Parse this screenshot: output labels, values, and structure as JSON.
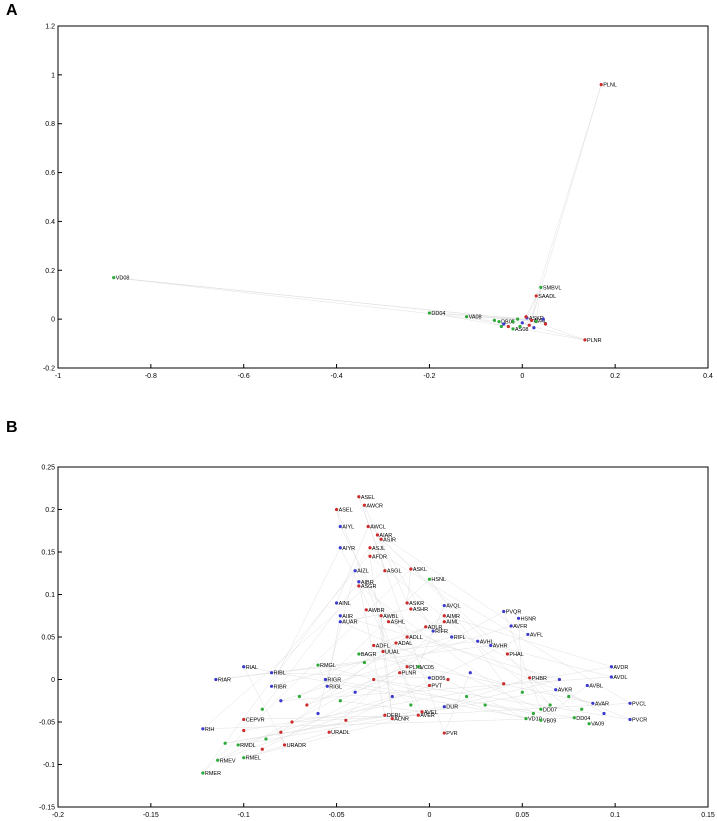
{
  "chart_data": [
    {
      "panel": "A",
      "type": "scatter",
      "title": "",
      "xlabel": "",
      "ylabel": "",
      "xlim": [
        -1,
        0.4
      ],
      "ylim": [
        -0.2,
        1.2
      ],
      "xticks": [
        -1,
        -0.8,
        -0.6,
        -0.4,
        -0.2,
        0,
        0.2,
        0.4
      ],
      "yticks": [
        -0.2,
        0,
        0.2,
        0.4,
        0.6,
        0.8,
        1,
        1.2
      ],
      "colors": {
        "sensory": "#3a3acc",
        "inter": "#cc2b2b",
        "motor": "#2eaa3a"
      },
      "points": [
        {
          "label": "PLNL",
          "x": 0.17,
          "y": 0.96,
          "class": "inter"
        },
        {
          "label": "VD08",
          "x": -0.88,
          "y": 0.17,
          "class": "motor"
        },
        {
          "label": "SMBVL",
          "x": 0.04,
          "y": 0.13,
          "class": "motor"
        },
        {
          "label": "SAADL",
          "x": 0.03,
          "y": 0.095,
          "class": "inter"
        },
        {
          "label": "DD04",
          "x": -0.2,
          "y": 0.025,
          "class": "motor"
        },
        {
          "label": "VA08",
          "x": -0.12,
          "y": 0.01,
          "class": "motor"
        },
        {
          "label": "PLNR",
          "x": 0.135,
          "y": -0.085,
          "class": "inter"
        },
        {
          "label": "ASKR",
          "x": 0.01,
          "y": 0.005,
          "class": "sensory"
        },
        {
          "label": "AS08",
          "x": -0.02,
          "y": -0.04,
          "class": "motor"
        },
        {
          "label": "AVAL",
          "x": 0.02,
          "y": -0.005,
          "class": "inter"
        },
        {
          "label": "DB05",
          "x": -0.05,
          "y": -0.01,
          "class": "motor"
        },
        {
          "label": "",
          "x": -0.06,
          "y": -0.005,
          "class": "motor"
        },
        {
          "label": "",
          "x": -0.04,
          "y": -0.02,
          "class": "sensory"
        },
        {
          "label": "",
          "x": -0.03,
          "y": -0.03,
          "class": "inter"
        },
        {
          "label": "",
          "x": -0.01,
          "y": 0.0,
          "class": "motor"
        },
        {
          "label": "",
          "x": 0.0,
          "y": -0.015,
          "class": "sensory"
        },
        {
          "label": "",
          "x": 0.015,
          "y": -0.025,
          "class": "inter"
        },
        {
          "label": "",
          "x": 0.03,
          "y": -0.01,
          "class": "motor"
        },
        {
          "label": "",
          "x": 0.045,
          "y": 0.0,
          "class": "sensory"
        },
        {
          "label": "",
          "x": 0.05,
          "y": -0.02,
          "class": "inter"
        },
        {
          "label": "",
          "x": -0.02,
          "y": -0.01,
          "class": "motor"
        },
        {
          "label": "",
          "x": -0.005,
          "y": -0.03,
          "class": "motor"
        },
        {
          "label": "",
          "x": 0.025,
          "y": -0.035,
          "class": "sensory"
        },
        {
          "label": "",
          "x": -0.045,
          "y": -0.03,
          "class": "motor"
        },
        {
          "label": "",
          "x": 0.008,
          "y": 0.01,
          "class": "inter"
        }
      ],
      "edges": [
        [
          1,
          9
        ],
        [
          0,
          9
        ],
        [
          4,
          9
        ],
        [
          5,
          9
        ],
        [
          6,
          9
        ],
        [
          2,
          9
        ],
        [
          3,
          9
        ]
      ]
    },
    {
      "panel": "B",
      "type": "scatter",
      "title": "",
      "xlabel": "",
      "ylabel": "",
      "xlim": [
        -0.2,
        0.15
      ],
      "ylim": [
        -0.15,
        0.25
      ],
      "xticks": [
        -0.2,
        -0.15,
        -0.1,
        -0.05,
        0,
        0.05,
        0.1,
        0.15
      ],
      "yticks": [
        -0.15,
        -0.1,
        -0.05,
        0,
        0.05,
        0.1,
        0.15,
        0.2,
        0.25
      ],
      "colors": {
        "sensory": "#3a3acc",
        "inter": "#cc2b2b",
        "motor": "#2eaa3a"
      },
      "points": [
        {
          "label": "ASEL",
          "x": -0.05,
          "y": 0.2,
          "class": "inter"
        },
        {
          "label": "ASEL",
          "x": -0.038,
          "y": 0.215,
          "class": "inter"
        },
        {
          "label": "AWCR",
          "x": -0.035,
          "y": 0.205,
          "class": "inter"
        },
        {
          "label": "AIYL",
          "x": -0.048,
          "y": 0.18,
          "class": "sensory"
        },
        {
          "label": "AWCL",
          "x": -0.033,
          "y": 0.18,
          "class": "inter"
        },
        {
          "label": "AIAR",
          "x": -0.028,
          "y": 0.17,
          "class": "inter"
        },
        {
          "label": "ASIR",
          "x": -0.026,
          "y": 0.165,
          "class": "inter"
        },
        {
          "label": "AIYR",
          "x": -0.048,
          "y": 0.155,
          "class": "sensory"
        },
        {
          "label": "ASJL",
          "x": -0.032,
          "y": 0.155,
          "class": "inter"
        },
        {
          "label": "AFDR",
          "x": -0.032,
          "y": 0.145,
          "class": "inter"
        },
        {
          "label": "ASGL",
          "x": -0.024,
          "y": 0.128,
          "class": "inter"
        },
        {
          "label": "ASKL",
          "x": -0.01,
          "y": 0.13,
          "class": "inter"
        },
        {
          "label": "AIZL",
          "x": -0.04,
          "y": 0.128,
          "class": "sensory"
        },
        {
          "label": "HSNL",
          "x": 0.0,
          "y": 0.118,
          "class": "motor"
        },
        {
          "label": "AIBR",
          "x": -0.038,
          "y": 0.115,
          "class": "sensory"
        },
        {
          "label": "ASGR",
          "x": -0.038,
          "y": 0.11,
          "class": "inter"
        },
        {
          "label": "AINL",
          "x": -0.05,
          "y": 0.09,
          "class": "sensory"
        },
        {
          "label": "ASKR",
          "x": -0.012,
          "y": 0.09,
          "class": "inter"
        },
        {
          "label": "AWBR",
          "x": -0.034,
          "y": 0.082,
          "class": "inter"
        },
        {
          "label": "ASHR",
          "x": -0.01,
          "y": 0.083,
          "class": "inter"
        },
        {
          "label": "AVQL",
          "x": 0.008,
          "y": 0.087,
          "class": "sensory"
        },
        {
          "label": "AWBL",
          "x": -0.026,
          "y": 0.075,
          "class": "inter"
        },
        {
          "label": "AIMR",
          "x": 0.008,
          "y": 0.075,
          "class": "inter"
        },
        {
          "label": "AIIR",
          "x": -0.048,
          "y": 0.075,
          "class": "sensory"
        },
        {
          "label": "ASHL",
          "x": -0.022,
          "y": 0.068,
          "class": "inter"
        },
        {
          "label": "AUAR",
          "x": -0.048,
          "y": 0.068,
          "class": "sensory"
        },
        {
          "label": "AIML",
          "x": 0.008,
          "y": 0.068,
          "class": "inter"
        },
        {
          "label": "ADLR",
          "x": -0.002,
          "y": 0.062,
          "class": "inter"
        },
        {
          "label": "PVQR",
          "x": 0.04,
          "y": 0.08,
          "class": "sensory"
        },
        {
          "label": "HSNR",
          "x": 0.048,
          "y": 0.072,
          "class": "sensory"
        },
        {
          "label": "AVFR",
          "x": 0.044,
          "y": 0.063,
          "class": "sensory"
        },
        {
          "label": "AVFL",
          "x": 0.053,
          "y": 0.053,
          "class": "sensory"
        },
        {
          "label": "RIFR",
          "x": 0.002,
          "y": 0.057,
          "class": "sensory"
        },
        {
          "label": "ADLL",
          "x": -0.012,
          "y": 0.05,
          "class": "inter"
        },
        {
          "label": "RIFL",
          "x": 0.012,
          "y": 0.05,
          "class": "sensory"
        },
        {
          "label": "ADFL",
          "x": -0.03,
          "y": 0.04,
          "class": "inter"
        },
        {
          "label": "ADAL",
          "x": -0.018,
          "y": 0.043,
          "class": "inter"
        },
        {
          "label": "AVHL",
          "x": 0.026,
          "y": 0.045,
          "class": "sensory"
        },
        {
          "label": "AVHR",
          "x": 0.033,
          "y": 0.04,
          "class": "sensory"
        },
        {
          "label": "UUAL",
          "x": -0.025,
          "y": 0.033,
          "class": "inter"
        },
        {
          "label": "BAGR",
          "x": -0.038,
          "y": 0.03,
          "class": "motor"
        },
        {
          "label": "RMGL",
          "x": -0.06,
          "y": 0.017,
          "class": "motor"
        },
        {
          "label": "RIAL",
          "x": -0.1,
          "y": 0.015,
          "class": "sensory"
        },
        {
          "label": "PLNL",
          "x": -0.012,
          "y": 0.015,
          "class": "inter"
        },
        {
          "label": "PLNR",
          "x": -0.016,
          "y": 0.008,
          "class": "inter"
        },
        {
          "label": "PHAL",
          "x": 0.042,
          "y": 0.03,
          "class": "inter"
        },
        {
          "label": "AVDR",
          "x": 0.098,
          "y": 0.015,
          "class": "sensory"
        },
        {
          "label": "RIAR",
          "x": -0.115,
          "y": 0.0,
          "class": "sensory"
        },
        {
          "label": "RIBL",
          "x": -0.085,
          "y": 0.008,
          "class": "sensory"
        },
        {
          "label": "RIGR",
          "x": -0.056,
          "y": 0.0,
          "class": "sensory"
        },
        {
          "label": "VC05",
          "x": -0.006,
          "y": 0.015,
          "class": "motor"
        },
        {
          "label": "AVDL",
          "x": 0.098,
          "y": 0.003,
          "class": "sensory"
        },
        {
          "label": "RIBR",
          "x": -0.085,
          "y": -0.008,
          "class": "sensory"
        },
        {
          "label": "RIGL",
          "x": -0.055,
          "y": -0.008,
          "class": "sensory"
        },
        {
          "label": "DD05",
          "x": 0.0,
          "y": 0.002,
          "class": "sensory"
        },
        {
          "label": "PVT",
          "x": 0.0,
          "y": -0.007,
          "class": "inter"
        },
        {
          "label": "PHBR",
          "x": 0.054,
          "y": 0.002,
          "class": "inter"
        },
        {
          "label": "AVBL",
          "x": 0.085,
          "y": -0.007,
          "class": "sensory"
        },
        {
          "label": "AVKR",
          "x": 0.068,
          "y": -0.012,
          "class": "sensory"
        },
        {
          "label": "PVCL",
          "x": 0.108,
          "y": -0.028,
          "class": "sensory"
        },
        {
          "label": "PVCR",
          "x": 0.108,
          "y": -0.047,
          "class": "sensory"
        },
        {
          "label": "AVAR",
          "x": 0.088,
          "y": -0.028,
          "class": "sensory"
        },
        {
          "label": "DUR",
          "x": 0.008,
          "y": -0.032,
          "class": "sensory"
        },
        {
          "label": "AVER",
          "x": -0.006,
          "y": -0.042,
          "class": "inter"
        },
        {
          "label": "AVEL",
          "x": -0.004,
          "y": -0.038,
          "class": "inter"
        },
        {
          "label": "DERL",
          "x": -0.024,
          "y": -0.042,
          "class": "inter"
        },
        {
          "label": "ALNR",
          "x": -0.02,
          "y": -0.046,
          "class": "inter"
        },
        {
          "label": "DD07",
          "x": 0.06,
          "y": -0.035,
          "class": "motor"
        },
        {
          "label": "VD10",
          "x": 0.052,
          "y": -0.046,
          "class": "motor"
        },
        {
          "label": "VB09",
          "x": 0.06,
          "y": -0.048,
          "class": "motor"
        },
        {
          "label": "DD04",
          "x": 0.078,
          "y": -0.045,
          "class": "motor"
        },
        {
          "label": "VA09",
          "x": 0.086,
          "y": -0.052,
          "class": "motor"
        },
        {
          "label": "CEPVR",
          "x": -0.1,
          "y": -0.047,
          "class": "inter"
        },
        {
          "label": "RIH",
          "x": -0.122,
          "y": -0.058,
          "class": "sensory"
        },
        {
          "label": "URADL",
          "x": -0.054,
          "y": -0.062,
          "class": "inter"
        },
        {
          "label": "URADR",
          "x": -0.078,
          "y": -0.077,
          "class": "inter"
        },
        {
          "label": "RMDL",
          "x": -0.103,
          "y": -0.077,
          "class": "motor"
        },
        {
          "label": "RMEL",
          "x": -0.1,
          "y": -0.092,
          "class": "motor"
        },
        {
          "label": "RMEV",
          "x": -0.114,
          "y": -0.095,
          "class": "motor"
        },
        {
          "label": "PVR",
          "x": 0.008,
          "y": -0.063,
          "class": "inter"
        },
        {
          "label": "RMER",
          "x": -0.122,
          "y": -0.11,
          "class": "motor"
        },
        {
          "label": "",
          "x": -0.07,
          "y": -0.02,
          "class": "motor"
        },
        {
          "label": "",
          "x": -0.066,
          "y": -0.03,
          "class": "inter"
        },
        {
          "label": "",
          "x": -0.074,
          "y": -0.05,
          "class": "inter"
        },
        {
          "label": "",
          "x": -0.08,
          "y": -0.062,
          "class": "inter"
        },
        {
          "label": "",
          "x": -0.088,
          "y": -0.07,
          "class": "motor"
        },
        {
          "label": "",
          "x": -0.09,
          "y": -0.082,
          "class": "inter"
        },
        {
          "label": "",
          "x": -0.06,
          "y": -0.04,
          "class": "sensory"
        },
        {
          "label": "",
          "x": -0.048,
          "y": -0.025,
          "class": "motor"
        },
        {
          "label": "",
          "x": -0.04,
          "y": -0.015,
          "class": "sensory"
        },
        {
          "label": "",
          "x": -0.03,
          "y": 0.0,
          "class": "inter"
        },
        {
          "label": "",
          "x": -0.02,
          "y": -0.02,
          "class": "sensory"
        },
        {
          "label": "",
          "x": 0.02,
          "y": -0.02,
          "class": "motor"
        },
        {
          "label": "",
          "x": 0.03,
          "y": -0.03,
          "class": "motor"
        },
        {
          "label": "",
          "x": 0.04,
          "y": -0.005,
          "class": "inter"
        },
        {
          "label": "",
          "x": 0.05,
          "y": -0.015,
          "class": "motor"
        },
        {
          "label": "",
          "x": 0.065,
          "y": -0.03,
          "class": "motor"
        },
        {
          "label": "",
          "x": 0.075,
          "y": -0.02,
          "class": "motor"
        },
        {
          "label": "",
          "x": 0.07,
          "y": 0.0,
          "class": "sensory"
        },
        {
          "label": "",
          "x": 0.082,
          "y": -0.035,
          "class": "motor"
        },
        {
          "label": "",
          "x": 0.094,
          "y": -0.04,
          "class": "sensory"
        },
        {
          "label": "",
          "x": -0.09,
          "y": -0.035,
          "class": "motor"
        },
        {
          "label": "",
          "x": -0.08,
          "y": -0.025,
          "class": "sensory"
        },
        {
          "label": "",
          "x": -0.1,
          "y": -0.06,
          "class": "inter"
        },
        {
          "label": "",
          "x": -0.11,
          "y": -0.075,
          "class": "motor"
        },
        {
          "label": "",
          "x": 0.01,
          "y": 0.0,
          "class": "inter"
        },
        {
          "label": "",
          "x": 0.022,
          "y": 0.008,
          "class": "sensory"
        },
        {
          "label": "",
          "x": -0.01,
          "y": -0.03,
          "class": "motor"
        },
        {
          "label": "",
          "x": 0.056,
          "y": -0.04,
          "class": "motor"
        },
        {
          "label": "",
          "x": -0.045,
          "y": -0.048,
          "class": "inter"
        },
        {
          "label": "",
          "x": -0.035,
          "y": 0.02,
          "class": "motor"
        }
      ]
    }
  ],
  "panel_labels": {
    "a": "A",
    "b": "B"
  }
}
